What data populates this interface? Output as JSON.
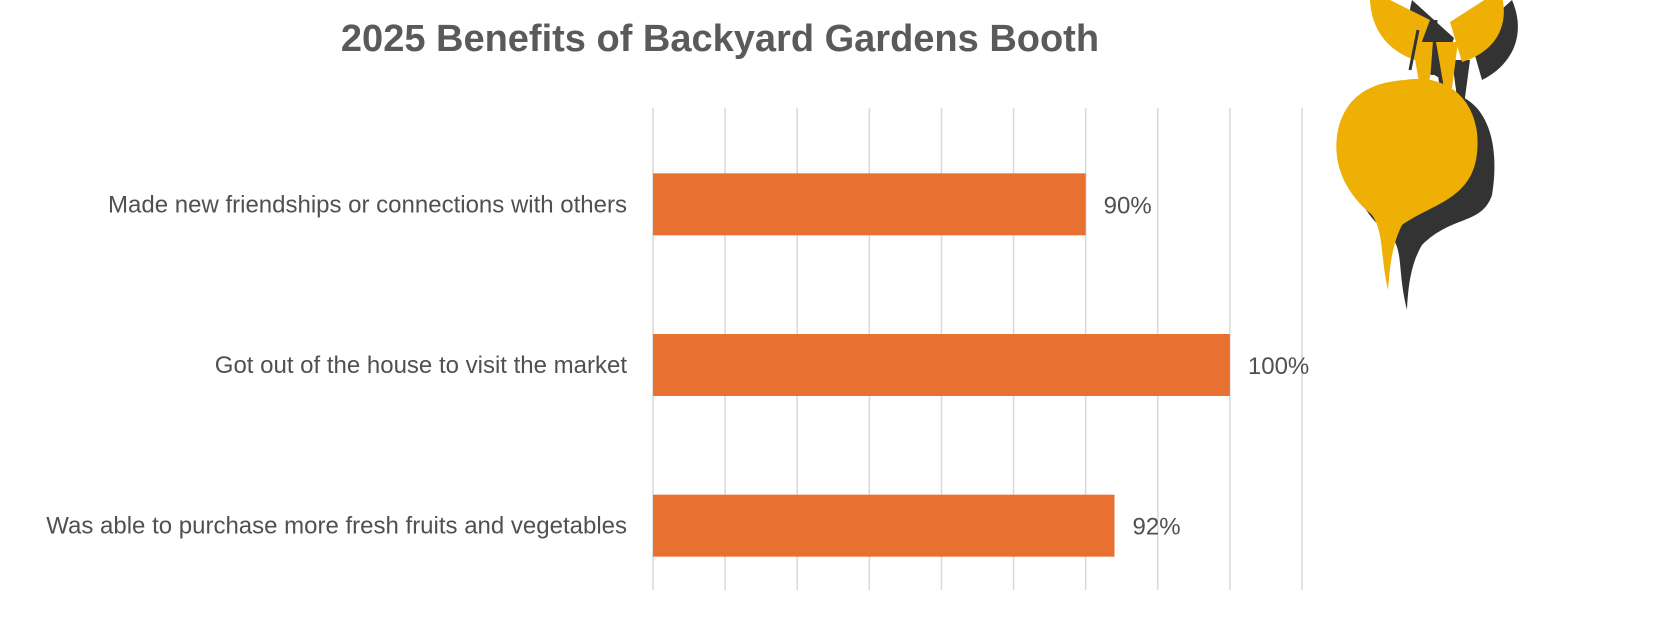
{
  "chart_data": {
    "type": "bar",
    "orientation": "horizontal",
    "title": "2025 Benefits of Backyard Gardens Booth",
    "categories": [
      "Made new friendships or connections with others",
      "Got out of the house to visit the market",
      "Was able to purchase more fresh fruits and vegetables"
    ],
    "values": [
      90,
      100,
      92
    ],
    "data_labels": [
      "90%",
      "100%",
      "92%"
    ],
    "xlim": [
      60,
      105
    ],
    "x_gridline_step": 5,
    "grid": true,
    "legend": "none",
    "colors": {
      "bar": "#E87030",
      "decoration_gold": "#EEB004",
      "decoration_shadow": "#333333"
    },
    "decoration": "beet-icon"
  }
}
